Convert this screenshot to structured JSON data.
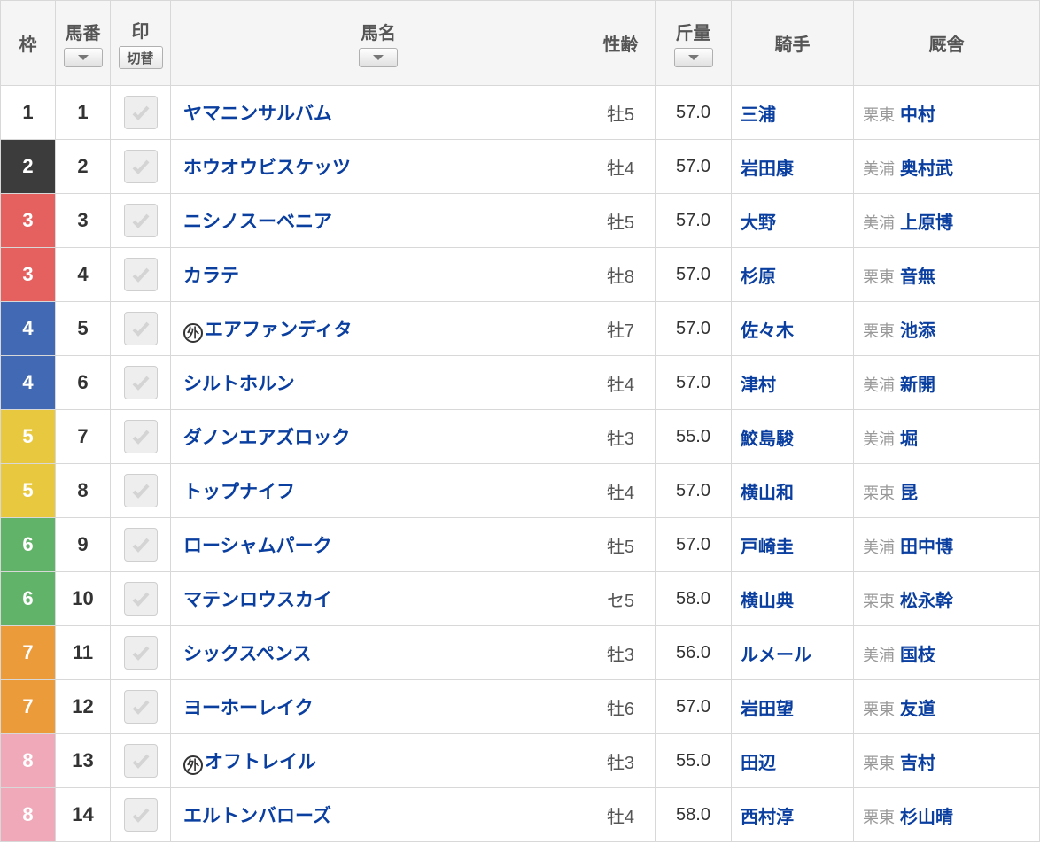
{
  "headers": {
    "waku": "枠",
    "umaban": "馬番",
    "mark": "印",
    "mark_toggle": "切替",
    "name": "馬名",
    "age": "性齢",
    "weight": "斤量",
    "jockey": "騎手",
    "stable": "厩舎"
  },
  "waku_colors": {
    "1": {
      "bg": "#ffffff",
      "fg": "#333333"
    },
    "2": {
      "bg": "#3c3c3c",
      "fg": "#ffffff"
    },
    "3": {
      "bg": "#e5615f",
      "fg": "#ffffff"
    },
    "4": {
      "bg": "#4269b3",
      "fg": "#ffffff"
    },
    "5": {
      "bg": "#e8c83f",
      "fg": "#ffffff"
    },
    "6": {
      "bg": "#62b36a",
      "fg": "#ffffff"
    },
    "7": {
      "bg": "#ec9b3b",
      "fg": "#ffffff"
    },
    "8": {
      "bg": "#f0a9b8",
      "fg": "#ffffff"
    }
  },
  "rows": [
    {
      "waku": "1",
      "umaban": "1",
      "gai": false,
      "name": "ヤマニンサルバム",
      "age": "牡5",
      "weight": "57.0",
      "jockey": "三浦",
      "loc": "栗東",
      "trainer": "中村"
    },
    {
      "waku": "2",
      "umaban": "2",
      "gai": false,
      "name": "ホウオウビスケッツ",
      "age": "牡4",
      "weight": "57.0",
      "jockey": "岩田康",
      "loc": "美浦",
      "trainer": "奥村武"
    },
    {
      "waku": "3",
      "umaban": "3",
      "gai": false,
      "name": "ニシノスーベニア",
      "age": "牡5",
      "weight": "57.0",
      "jockey": "大野",
      "loc": "美浦",
      "trainer": "上原博"
    },
    {
      "waku": "3",
      "umaban": "4",
      "gai": false,
      "name": "カラテ",
      "age": "牡8",
      "weight": "57.0",
      "jockey": "杉原",
      "loc": "栗東",
      "trainer": "音無"
    },
    {
      "waku": "4",
      "umaban": "5",
      "gai": true,
      "name": "エアファンディタ",
      "age": "牡7",
      "weight": "57.0",
      "jockey": "佐々木",
      "loc": "栗東",
      "trainer": "池添"
    },
    {
      "waku": "4",
      "umaban": "6",
      "gai": false,
      "name": "シルトホルン",
      "age": "牡4",
      "weight": "57.0",
      "jockey": "津村",
      "loc": "美浦",
      "trainer": "新開"
    },
    {
      "waku": "5",
      "umaban": "7",
      "gai": false,
      "name": "ダノンエアズロック",
      "age": "牡3",
      "weight": "55.0",
      "jockey": "鮫島駿",
      "loc": "美浦",
      "trainer": "堀"
    },
    {
      "waku": "5",
      "umaban": "8",
      "gai": false,
      "name": "トップナイフ",
      "age": "牡4",
      "weight": "57.0",
      "jockey": "横山和",
      "loc": "栗東",
      "trainer": "昆"
    },
    {
      "waku": "6",
      "umaban": "9",
      "gai": false,
      "name": "ローシャムパーク",
      "age": "牡5",
      "weight": "57.0",
      "jockey": "戸崎圭",
      "loc": "美浦",
      "trainer": "田中博"
    },
    {
      "waku": "6",
      "umaban": "10",
      "gai": false,
      "name": "マテンロウスカイ",
      "age": "セ5",
      "weight": "58.0",
      "jockey": "横山典",
      "loc": "栗東",
      "trainer": "松永幹"
    },
    {
      "waku": "7",
      "umaban": "11",
      "gai": false,
      "name": "シックスペンス",
      "age": "牡3",
      "weight": "56.0",
      "jockey": "ルメール",
      "loc": "美浦",
      "trainer": "国枝"
    },
    {
      "waku": "7",
      "umaban": "12",
      "gai": false,
      "name": "ヨーホーレイク",
      "age": "牡6",
      "weight": "57.0",
      "jockey": "岩田望",
      "loc": "栗東",
      "trainer": "友道"
    },
    {
      "waku": "8",
      "umaban": "13",
      "gai": true,
      "name": "オフトレイル",
      "age": "牡3",
      "weight": "55.0",
      "jockey": "田辺",
      "loc": "栗東",
      "trainer": "吉村"
    },
    {
      "waku": "8",
      "umaban": "14",
      "gai": false,
      "name": "エルトンバローズ",
      "age": "牡4",
      "weight": "58.0",
      "jockey": "西村淳",
      "loc": "栗東",
      "trainer": "杉山晴"
    }
  ]
}
